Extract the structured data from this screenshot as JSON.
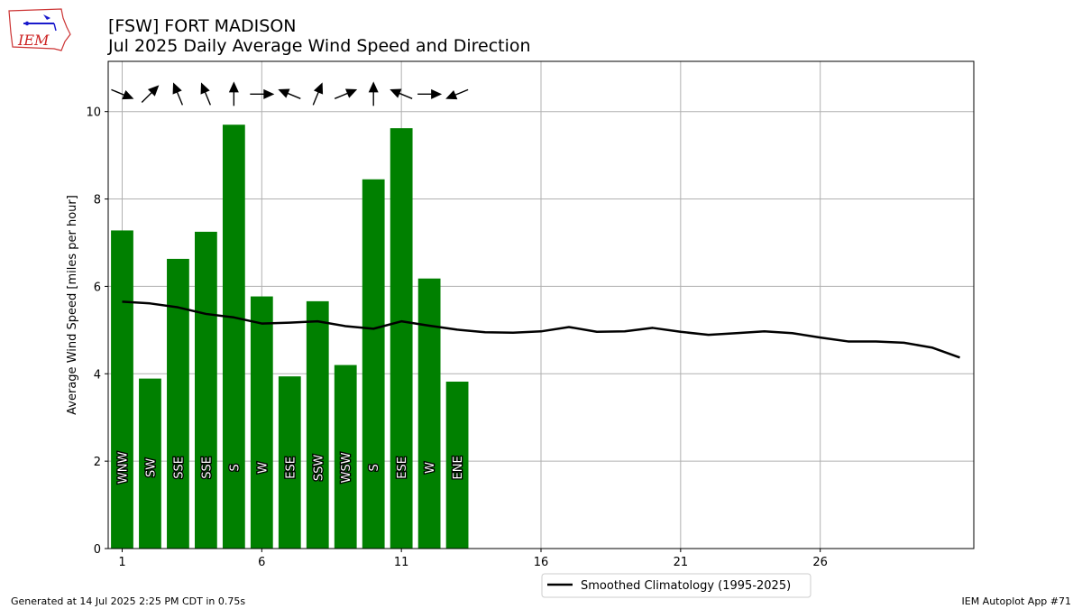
{
  "chart_data": {
    "type": "bar",
    "title": "[FSW] FORT MADISON",
    "subtitle": "Jul 2025 Daily Average Wind Speed and Direction",
    "ylabel": "Average Wind Speed [miles per hour]",
    "xlabel": "",
    "x_ticks": [
      1,
      6,
      11,
      16,
      21,
      26
    ],
    "y_ticks": [
      0,
      2,
      4,
      6,
      8,
      10
    ],
    "xlim": [
      0.5,
      31.5
    ],
    "ylim": [
      0,
      11.15
    ],
    "grid": true,
    "bar_color": "#008000",
    "days": [
      1,
      2,
      3,
      4,
      5,
      6,
      7,
      8,
      9,
      10,
      11,
      12,
      13
    ],
    "values": [
      7.28,
      3.89,
      6.63,
      7.25,
      9.7,
      5.77,
      3.94,
      5.66,
      4.2,
      8.45,
      9.62,
      6.18,
      3.82
    ],
    "directions": [
      "WNW",
      "SW",
      "SSE",
      "SSE",
      "S",
      "W",
      "ESE",
      "SSW",
      "WSW",
      "S",
      "ESE",
      "W",
      "ENE"
    ],
    "arrow_directions_deg": [
      292.5,
      225,
      157.5,
      157.5,
      180,
      270,
      112.5,
      202.5,
      247.5,
      180,
      112.5,
      270,
      67.5
    ],
    "climatology": {
      "name": "Smoothed Climatology (1995-2025)",
      "color": "#000000",
      "x": [
        1,
        2,
        3,
        4,
        5,
        6,
        7,
        8,
        9,
        10,
        11,
        12,
        13,
        14,
        15,
        16,
        17,
        18,
        19,
        20,
        21,
        22,
        23,
        24,
        25,
        26,
        27,
        28,
        29,
        30,
        31
      ],
      "values": [
        5.65,
        5.61,
        5.52,
        5.37,
        5.29,
        5.15,
        5.17,
        5.2,
        5.09,
        5.03,
        5.2,
        5.1,
        5.01,
        4.95,
        4.94,
        4.97,
        5.07,
        4.96,
        4.97,
        5.05,
        4.96,
        4.89,
        4.93,
        4.97,
        4.93,
        4.83,
        4.74,
        4.74,
        4.71,
        4.6,
        4.37
      ]
    }
  },
  "branding": {
    "logo_text": "IEM"
  },
  "footer": {
    "left": "Generated at 14 Jul 2025 2:25 PM CDT in 0.75s",
    "right": "IEM Autoplot App #71"
  }
}
